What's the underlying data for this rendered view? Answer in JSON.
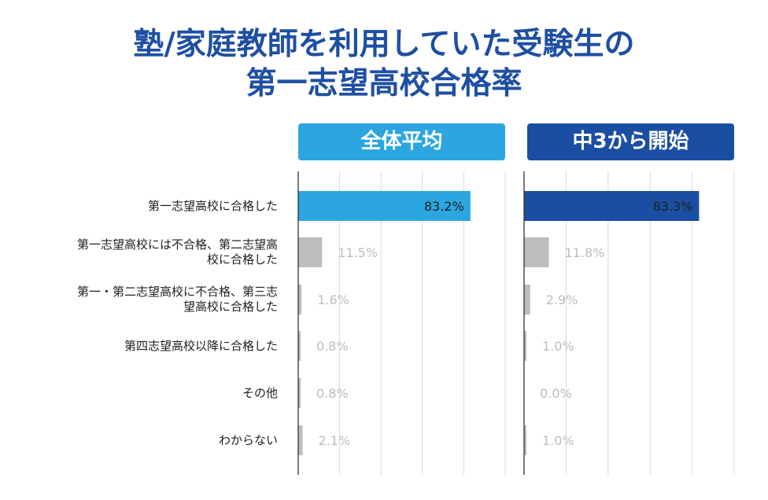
{
  "title": {
    "line1": "塾/家庭教師を利用していた受験生の",
    "line2": "第一志望高校合格率"
  },
  "colors": {
    "title": "#1f4fa3",
    "panel_all": "#2ba6e1",
    "panel_g3": "#1a4ea3",
    "other_bar": "#bdbdbd",
    "other_label": "#bdbdbd",
    "highlight_label": "#222222",
    "grid": "#d9d9d9",
    "axis": "#333333"
  },
  "chart_data": [
    {
      "type": "bar",
      "orientation": "horizontal",
      "title": "全体平均",
      "categories": [
        "第一志望高校に合格した",
        "第一志望高校には不合格、第二志望高校に合格した",
        "第一・第二志望高校に不合格、第三志望高校に合格した",
        "第四志望高校以降に合格した",
        "その他",
        "わからない"
      ],
      "values": [
        83.2,
        11.5,
        1.6,
        0.8,
        0.8,
        2.1
      ],
      "value_labels": [
        "83.2%",
        "11.5%",
        "1.6%",
        "0.8%",
        "0.8%",
        "2.1%"
      ],
      "xlim": [
        0,
        100
      ],
      "grid": true
    },
    {
      "type": "bar",
      "orientation": "horizontal",
      "title": "中3から開始",
      "categories": [
        "第一志望高校に合格した",
        "第一志望高校には不合格、第二志望高校に合格した",
        "第一・第二志望高校に不合格、第三志望高校に合格した",
        "第四志望高校以降に合格した",
        "その他",
        "わからない"
      ],
      "values": [
        83.3,
        11.8,
        2.9,
        1.0,
        0.0,
        1.0
      ],
      "value_labels": [
        "83.3%",
        "11.8%",
        "2.9%",
        "1.0%",
        "0.0%",
        "1.0%"
      ],
      "xlim": [
        0,
        100
      ],
      "grid": true
    }
  ],
  "row_labels": [
    [
      "第一志望高校に合格した"
    ],
    [
      "第一志望高校には不合格、第二志望高",
      "校に合格した"
    ],
    [
      "第一・第二志望高校に不合格、第三志",
      "望高校に合格した"
    ],
    [
      "第四志望高校以降に合格した"
    ],
    [
      "その他"
    ],
    [
      "わからない"
    ]
  ]
}
